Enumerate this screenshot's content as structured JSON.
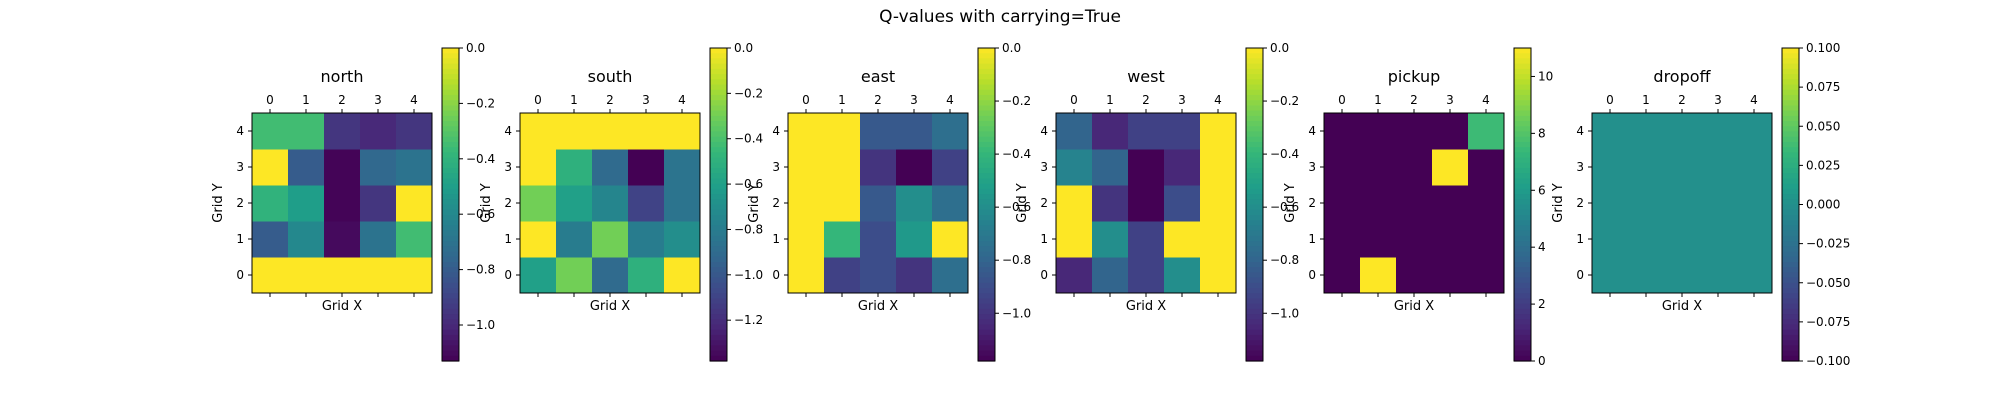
{
  "figure_title": "Q-values with carrying=True",
  "chart_data": [
    {
      "type": "heatmap",
      "title": "north",
      "xlabel": "Grid X",
      "ylabel": "Grid Y",
      "x_ticks": [
        "0",
        "1",
        "2",
        "3",
        "4"
      ],
      "y_ticks": [
        "0",
        "1",
        "2",
        "3",
        "4"
      ],
      "vmin": -1.13,
      "vmax": 0,
      "colorbar_ticks": [
        0,
        -0.2,
        -0.4,
        -0.6,
        -0.8,
        -1.0
      ],
      "colorbar_tick_labels": [
        "0.0",
        "−0.2",
        "−0.4",
        "−0.6",
        "−0.8",
        "−1.0"
      ],
      "values": [
        [
          0,
          0,
          0,
          0,
          0
        ],
        [
          -0.8,
          -0.6,
          -1.1,
          -0.7,
          -0.35
        ],
        [
          -0.4,
          -0.5,
          -1.12,
          -0.95,
          0
        ],
        [
          0,
          -0.8,
          -1.12,
          -0.75,
          -0.7
        ],
        [
          -0.35,
          -0.35,
          -0.95,
          -1.0,
          -0.95
        ]
      ]
    },
    {
      "type": "heatmap",
      "title": "south",
      "xlabel": "Grid X",
      "ylabel": "Grid Y",
      "x_ticks": [
        "0",
        "1",
        "2",
        "3",
        "4"
      ],
      "y_ticks": [
        "0",
        "1",
        "2",
        "3",
        "4"
      ],
      "vmin": -1.38,
      "vmax": 0,
      "colorbar_ticks": [
        0,
        -0.2,
        -0.4,
        -0.6,
        -0.8,
        -1.0,
        -1.2
      ],
      "colorbar_tick_labels": [
        "0.0",
        "−0.2",
        "−0.4",
        "−0.6",
        "−0.8",
        "−1.0",
        "−1.2"
      ],
      "values": [
        [
          -0.6,
          -0.3,
          -0.9,
          -0.5,
          0
        ],
        [
          0,
          -0.8,
          -0.3,
          -0.8,
          -0.7
        ],
        [
          -0.3,
          -0.6,
          -0.75,
          -1.1,
          -0.85
        ],
        [
          0,
          -0.5,
          -0.9,
          -1.38,
          -0.85
        ],
        [
          0,
          0,
          0,
          0,
          0
        ]
      ]
    },
    {
      "type": "heatmap",
      "title": "east",
      "xlabel": "Grid X",
      "ylabel": "Grid Y",
      "x_ticks": [
        "0",
        "1",
        "2",
        "3",
        "4"
      ],
      "y_ticks": [
        "0",
        "1",
        "2",
        "3",
        "4"
      ],
      "vmin": -1.18,
      "vmax": 0,
      "colorbar_ticks": [
        0,
        -0.2,
        -0.4,
        -0.6,
        -0.8,
        -1.0
      ],
      "colorbar_tick_labels": [
        "0.0",
        "−0.2",
        "−0.4",
        "−0.6",
        "−0.8",
        "−1.0"
      ],
      "values": [
        [
          0,
          -0.95,
          -0.9,
          -1.0,
          -0.75
        ],
        [
          0,
          -0.4,
          -0.9,
          -0.55,
          0
        ],
        [
          0,
          0,
          -0.85,
          -0.6,
          -0.75
        ],
        [
          0,
          0,
          -1.0,
          -1.18,
          -0.95
        ],
        [
          0,
          0,
          -0.85,
          -0.85,
          -0.75
        ]
      ]
    },
    {
      "type": "heatmap",
      "title": "west",
      "xlabel": "Grid X",
      "ylabel": "Grid Y",
      "x_ticks": [
        "0",
        "1",
        "2",
        "3",
        "4"
      ],
      "y_ticks": [
        "0",
        "1",
        "2",
        "3",
        "4"
      ],
      "vmin": -1.18,
      "vmax": 0,
      "colorbar_ticks": [
        0,
        -0.2,
        -0.4,
        -0.6,
        -0.8,
        -1.0
      ],
      "colorbar_tick_labels": [
        "0.0",
        "−0.2",
        "−0.4",
        "−0.6",
        "−0.8",
        "−1.0"
      ],
      "values": [
        [
          -1.05,
          -0.8,
          -0.95,
          -0.6,
          0
        ],
        [
          0,
          -0.6,
          -0.95,
          0,
          0
        ],
        [
          0,
          -1.0,
          -1.18,
          -0.9,
          0
        ],
        [
          -0.65,
          -0.8,
          -1.18,
          -1.05,
          0
        ],
        [
          -0.8,
          -1.05,
          -0.95,
          -0.95,
          0
        ]
      ]
    },
    {
      "type": "heatmap",
      "title": "pickup",
      "xlabel": "Grid X",
      "ylabel": "Grid Y",
      "x_ticks": [
        "0",
        "1",
        "2",
        "3",
        "4"
      ],
      "y_ticks": [
        "0",
        "1",
        "2",
        "3",
        "4"
      ],
      "vmin": 0,
      "vmax": 11,
      "colorbar_ticks": [
        0,
        2,
        4,
        6,
        8,
        10
      ],
      "colorbar_tick_labels": [
        "0",
        "2",
        "4",
        "6",
        "8",
        "10"
      ],
      "values": [
        [
          0,
          11,
          0,
          0,
          0
        ],
        [
          0,
          0,
          0,
          0,
          0
        ],
        [
          0,
          0,
          0,
          0,
          0
        ],
        [
          0,
          0,
          0,
          11,
          0
        ],
        [
          0,
          0,
          0,
          0,
          7.5
        ]
      ]
    },
    {
      "type": "heatmap",
      "title": "dropoff",
      "xlabel": "Grid X",
      "ylabel": "Grid Y",
      "x_ticks": [
        "0",
        "1",
        "2",
        "3",
        "4"
      ],
      "y_ticks": [
        "0",
        "1",
        "2",
        "3",
        "4"
      ],
      "vmin": -0.1,
      "vmax": 0.1,
      "colorbar_ticks": [
        0.1,
        0.075,
        0.05,
        0.025,
        0,
        -0.025,
        -0.05,
        -0.075,
        -0.1
      ],
      "colorbar_tick_labels": [
        "0.100",
        "0.075",
        "0.050",
        "0.025",
        "0.000",
        "−0.025",
        "−0.050",
        "−0.075",
        "−0.100"
      ],
      "values": [
        [
          0,
          0,
          0,
          0,
          0
        ],
        [
          0,
          0,
          0,
          0,
          0
        ],
        [
          0,
          0,
          0,
          0,
          0
        ],
        [
          0,
          0,
          0,
          0,
          0
        ],
        [
          0,
          0,
          0,
          0,
          0
        ]
      ]
    }
  ]
}
